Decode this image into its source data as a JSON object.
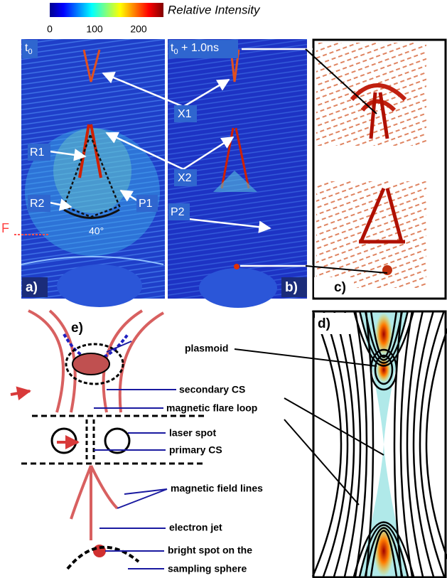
{
  "colorbar": {
    "title": "Relative Intensity",
    "ticks": [
      "0",
      "100",
      "200"
    ]
  },
  "panels": {
    "a": "a)",
    "b": "b)",
    "c": "c)",
    "d": "d)",
    "e": "e)"
  },
  "panel_a": {
    "time": {
      "text": "t",
      "subscript": "0"
    },
    "labels": {
      "R1": "R1",
      "R2": "R2",
      "P1": "P1",
      "F": "F",
      "angle": "40°"
    }
  },
  "panel_b": {
    "time": {
      "text": "t",
      "subscript": "0",
      "suffix": " + 1.0ns"
    },
    "labels": {
      "X1": "X1",
      "X2": "X2",
      "P2": "P2"
    }
  },
  "panel_e": {
    "labels": [
      "plasmoid",
      "secondary CS",
      "magnetic flare loop",
      "laser spot",
      "primary CS",
      "magnetic field lines",
      "electron jet",
      "bright spot on the",
      "sampling sphere"
    ]
  }
}
